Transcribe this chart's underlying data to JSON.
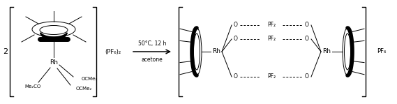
{
  "bg_color": "#ffffff",
  "line_color": "#000000",
  "figsize": [
    5.69,
    1.49
  ],
  "dpi": 100,
  "condition_top": "50°C, 12 h",
  "condition_bot": "acetone",
  "reagent": "(PF₆)₂",
  "counterion": "PF₆",
  "coeff": "2",
  "rh_label": "Rh",
  "me2co_label": "Me₂CO",
  "ocme2_label1": "OCMe₂",
  "ocme2_label2": "OCMe₂",
  "pf2_labels": [
    "PF₂",
    "PF₂",
    "PF₂"
  ]
}
